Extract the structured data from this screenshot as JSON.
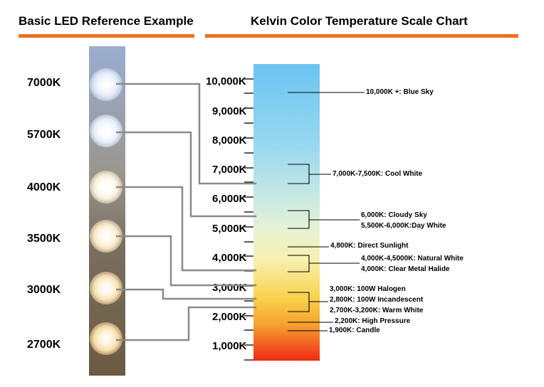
{
  "headers": {
    "left": "Basic LED Reference Example",
    "right": "Kelvin Color Temperature Scale Chart"
  },
  "leds": [
    {
      "label": "7000K"
    },
    {
      "label": "5700K"
    },
    {
      "label": "4000K"
    },
    {
      "label": "3500K"
    },
    {
      "label": "3000K"
    },
    {
      "label": "2700K"
    }
  ],
  "scale": {
    "ticks": [
      "10,000K",
      "9,000K",
      "8,000K",
      "7,000K",
      "6,000K",
      "5,000K",
      "4,000K",
      "3,000K",
      "2,000K",
      "1,000K"
    ],
    "gradient_colors": [
      "#6ac4f2",
      "#c0e6e6",
      "#f8f0b0",
      "#f9d24a",
      "#f6a030",
      "#ef2a14"
    ]
  },
  "annotations": {
    "blue_sky": "10,000K +: Blue Sky",
    "cool_white": "7,000K-7,500K: Cool White",
    "cloudy_sky": "6,000K: Cloudy Sky",
    "day_white": "5,500K-6,000K:Day White",
    "direct_sunlight": "4,800K: Direct Sunlight",
    "natural_white": "4,000K-4,5000K: Natural White",
    "clear_metal_halide": "4,000K: Clear Metal Halide",
    "halogen": "3,000K: 100W Halogen",
    "incandescent": "2,800K: 100W Incandescent",
    "warm_white": "2,700K-3,200K: Warm White",
    "high_pressure": "2,200K: High Pressure",
    "candle": "1,900K: Candle"
  },
  "colors": {
    "accent_underline": "#f07020",
    "connector_line": "#8a8a8a"
  }
}
